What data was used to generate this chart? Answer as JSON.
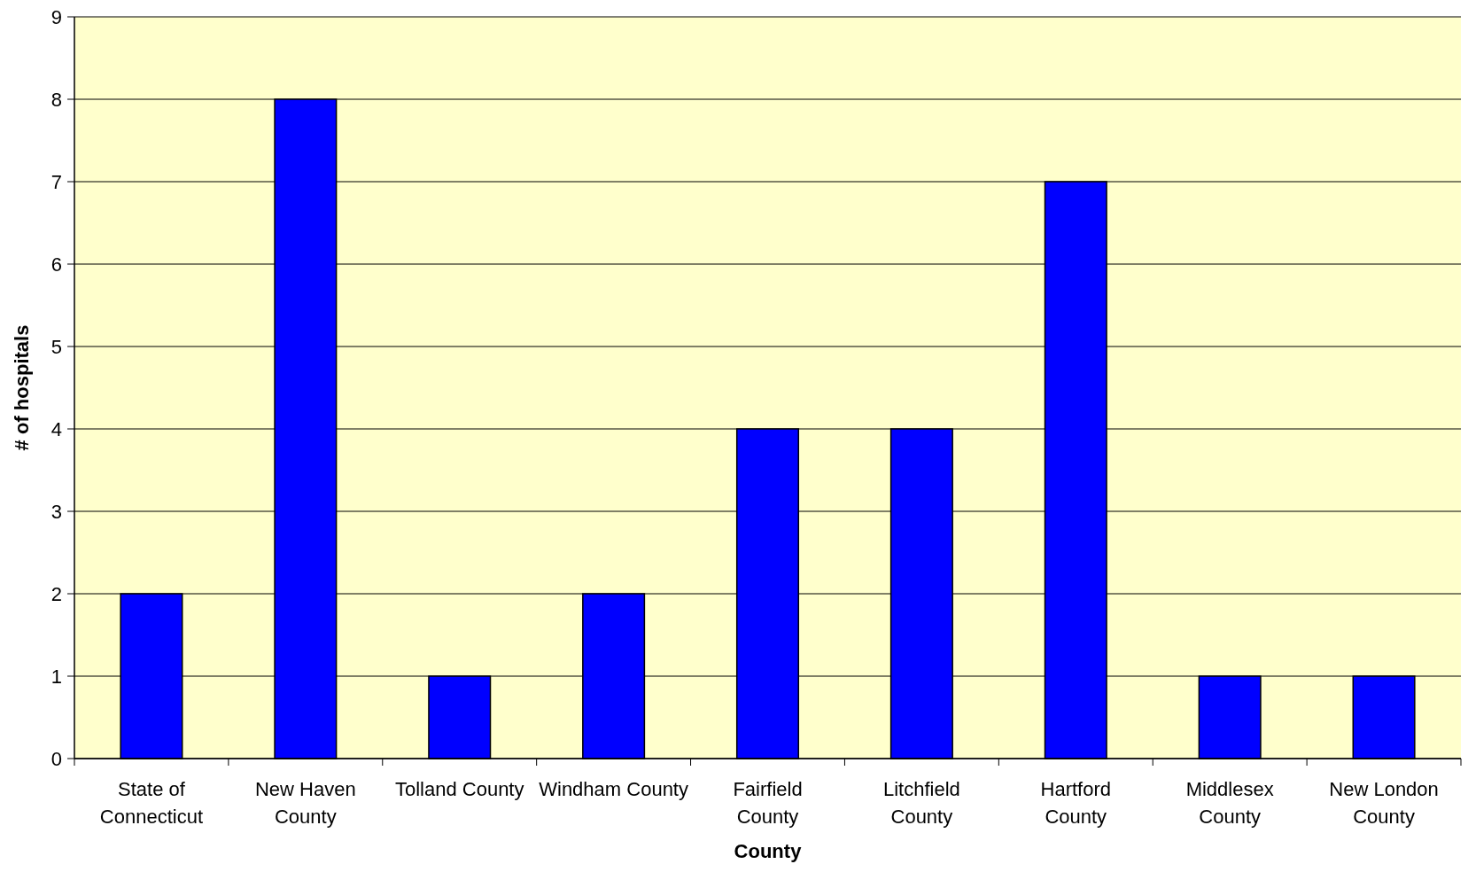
{
  "chart_data": {
    "type": "bar",
    "xlabel": "County",
    "ylabel": "# of hospitals",
    "categories": [
      "State of Connecticut",
      "New Haven County",
      "Tolland County",
      "Windham County",
      "Fairfield County",
      "Litchfield County",
      "Hartford County",
      "Middlesex County",
      "New London County"
    ],
    "values": [
      2,
      8,
      1,
      2,
      4,
      4,
      7,
      1,
      1
    ],
    "color": "#0000ff",
    "ylim": [
      0,
      9
    ],
    "yticks": [
      0,
      1,
      2,
      3,
      4,
      5,
      6,
      7,
      8,
      9
    ],
    "grid": "y"
  }
}
